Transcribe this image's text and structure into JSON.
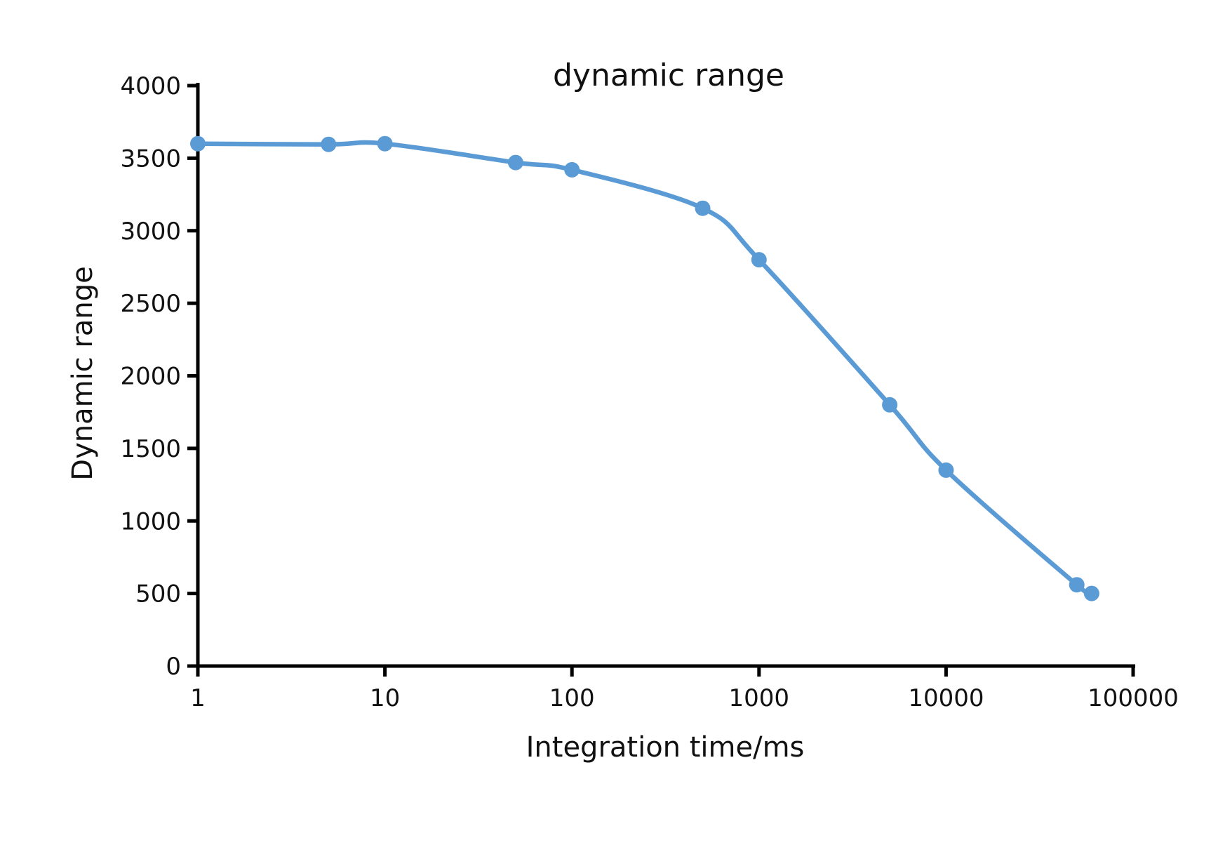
{
  "figure": {
    "background": "#ffffff"
  },
  "chart_data": {
    "type": "line",
    "title": "dynamic range",
    "xlabel": "Integration time/ms",
    "ylabel": "Dynamic range",
    "x_scale": "log",
    "y_scale": "linear",
    "xlim": [
      1,
      100000
    ],
    "ylim": [
      0,
      4000
    ],
    "x_ticks": [
      1,
      10,
      100,
      1000,
      10000,
      100000
    ],
    "y_ticks": [
      0,
      500,
      1000,
      1500,
      2000,
      2500,
      3000,
      3500,
      4000
    ],
    "grid": false,
    "legend": "none",
    "series": [
      {
        "name": "dynamic range",
        "x": [
          1,
          5,
          10,
          50,
          100,
          500,
          1000,
          5000,
          10000,
          50000,
          60000
        ],
        "y": [
          3600,
          3595,
          3600,
          3470,
          3420,
          3155,
          2800,
          1800,
          1350,
          560,
          500
        ],
        "color": "#5b9bd5",
        "marker": "circle",
        "smooth": true
      }
    ],
    "axis_color": "#000000",
    "text_color": "#111111"
  }
}
